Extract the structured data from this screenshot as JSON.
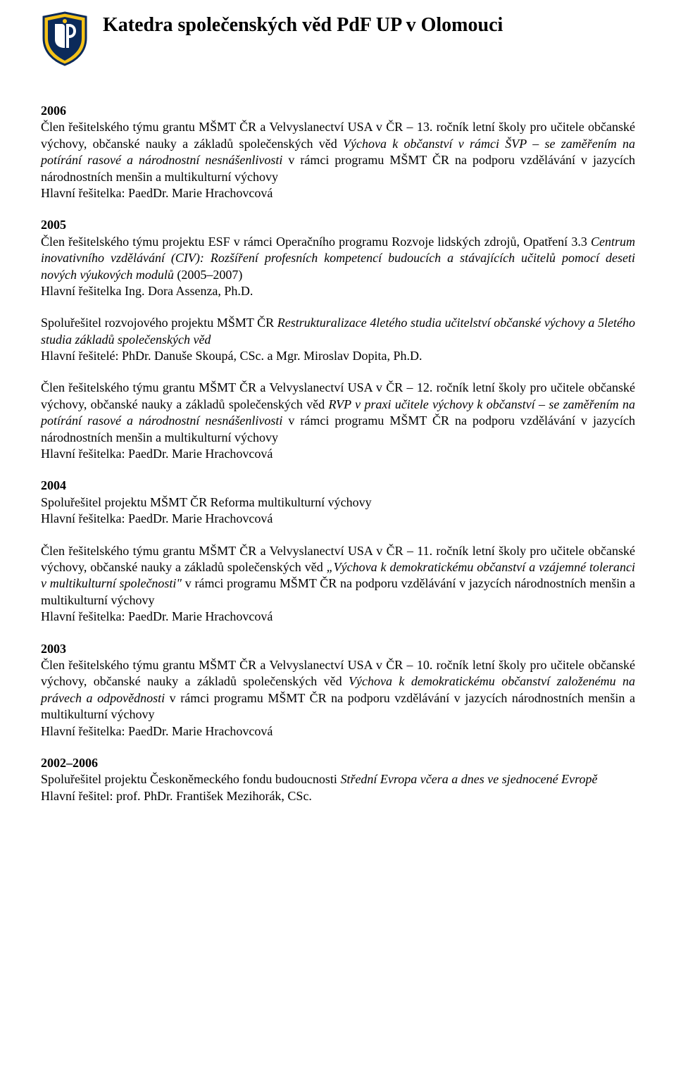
{
  "header": {
    "title": "Katedra společenských věd PdF UP v Olomouci"
  },
  "colors": {
    "logo_blue": "#0b2a5a",
    "logo_gold": "#f5c218"
  },
  "sections": [
    {
      "year": "2006",
      "paragraphs": [
        {
          "runs": [
            {
              "text": "Člen řešitelského týmu grantu MŠMT ČR a Velvyslanectví USA v ČR – 13. ročník letní školy pro učitele občanské výchovy, občanské nauky a základů společenských věd "
            },
            {
              "text": "Výchova k občanství v rámci ŠVP – se zaměřením na potírání rasové a národnostní nesnášenlivosti",
              "italic": true
            },
            {
              "text": " v rámci programu MŠMT ČR na podporu vzdělávání v jazycích národnostních menšin a multikulturní výchovy"
            }
          ]
        },
        {
          "runs": [
            {
              "text": "Hlavní řešitelka: PaedDr. Marie Hrachovcová"
            }
          ]
        }
      ]
    },
    {
      "year": "2005",
      "paragraphs": [
        {
          "runs": [
            {
              "text": "Člen řešitelského týmu projektu ESF v rámci Operačního programu Rozvoje lidských zdrojů, Opatření 3.3 "
            },
            {
              "text": "Centrum inovativního vzdělávání (CIV): Rozšíření profesních kompetencí budoucích a stávajících učitelů pomocí deseti nových výukových modulů",
              "italic": true
            },
            {
              "text": " (2005–2007)"
            }
          ]
        },
        {
          "runs": [
            {
              "text": "Hlavní řešitelka Ing. Dora Assenza, Ph.D."
            }
          ]
        }
      ]
    },
    {
      "year": "",
      "paragraphs": [
        {
          "runs": [
            {
              "text": "Spoluřešitel rozvojového projektu MŠMT ČR "
            },
            {
              "text": "Restrukturalizace 4letého studia učitelství občanské výchovy a 5letého studia základů společenských věd",
              "italic": true
            }
          ]
        },
        {
          "runs": [
            {
              "text": "Hlavní řešitelé: PhDr. Danuše Skoupá, CSc. a Mgr. Miroslav Dopita, Ph.D."
            }
          ]
        }
      ]
    },
    {
      "year": "",
      "paragraphs": [
        {
          "runs": [
            {
              "text": "Člen řešitelského týmu grantu MŠMT ČR a Velvyslanectví USA v ČR – 12. ročník letní školy pro učitele občanské výchovy, občanské nauky a základů společenských věd "
            },
            {
              "text": "RVP v praxi učitele výchovy k občanství – se zaměřením na potírání rasové a národnostní nesnášenlivosti",
              "italic": true
            },
            {
              "text": " v rámci programu MŠMT ČR na podporu vzdělávání v jazycích národnostních menšin a multikulturní výchovy"
            }
          ]
        },
        {
          "runs": [
            {
              "text": "Hlavní řešitelka: PaedDr. Marie Hrachovcová"
            }
          ]
        }
      ]
    },
    {
      "year": "2004",
      "paragraphs": [
        {
          "runs": [
            {
              "text": "Spoluřešitel projektu MŠMT ČR Reforma multikulturní výchovy"
            }
          ]
        },
        {
          "runs": [
            {
              "text": "Hlavní řešitelka: PaedDr. Marie Hrachovcová"
            }
          ]
        }
      ]
    },
    {
      "year": "",
      "paragraphs": [
        {
          "runs": [
            {
              "text": "Člen řešitelského týmu grantu MŠMT ČR a Velvyslanectví USA v ČR – 11. ročník letní školy pro učitele občanské výchovy, občanské nauky a základů společenských věd "
            },
            {
              "text": "„Výchova k demokratickému občanství a vzájemné toleranci v multikulturní společnosti\"",
              "italic": true
            },
            {
              "text": " v rámci programu MŠMT ČR na podporu vzdělávání v jazycích národnostních menšin a multikulturní výchovy"
            }
          ]
        },
        {
          "runs": [
            {
              "text": "Hlavní řešitelka: PaedDr. Marie Hrachovcová"
            }
          ]
        }
      ]
    },
    {
      "year": "2003",
      "paragraphs": [
        {
          "runs": [
            {
              "text": "Člen řešitelského týmu grantu MŠMT ČR a Velvyslanectví USA v ČR – 10. ročník letní školy pro učitele občanské výchovy, občanské nauky a základů společenských věd "
            },
            {
              "text": "Výchova k demokratickému občanství založenému na právech a odpovědnosti",
              "italic": true
            },
            {
              "text": " v rámci programu MŠMT ČR na podporu vzdělávání v jazycích národnostních menšin a multikulturní výchovy"
            }
          ]
        },
        {
          "runs": [
            {
              "text": "Hlavní řešitelka: PaedDr. Marie Hrachovcová"
            }
          ]
        }
      ]
    },
    {
      "year": "2002–2006",
      "paragraphs": [
        {
          "runs": [
            {
              "text": "Spoluřešitel projektu Českoněmeckého fondu budoucnosti "
            },
            {
              "text": "Střední Evropa včera a dnes ve sjednocené Evropě",
              "italic": true
            }
          ]
        },
        {
          "runs": [
            {
              "text": "Hlavní řešitel: prof. PhDr. František Mezihorák, CSc."
            }
          ]
        }
      ]
    }
  ]
}
